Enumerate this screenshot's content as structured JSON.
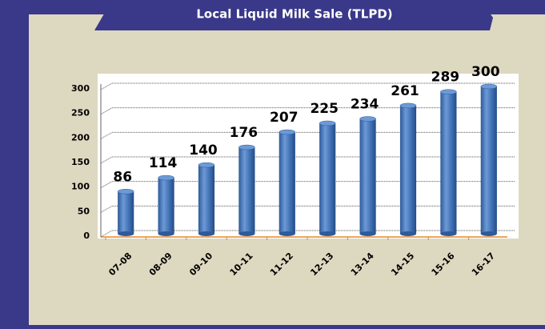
{
  "chart_data": {
    "type": "bar",
    "title": "Local Liquid Milk Sale (TLPD)",
    "categories": [
      "07-08",
      "08-09",
      "09-10",
      "10-11",
      "11-12",
      "12-13",
      "13-14",
      "14-15",
      "15-16",
      "16-17"
    ],
    "values": [
      86,
      114,
      140,
      176,
      207,
      225,
      234,
      261,
      289,
      300
    ],
    "color": "#4a7cc0",
    "ylim": [
      0,
      300
    ],
    "yticks": [
      0,
      50,
      100,
      150,
      200,
      250,
      300
    ],
    "grid": true
  }
}
